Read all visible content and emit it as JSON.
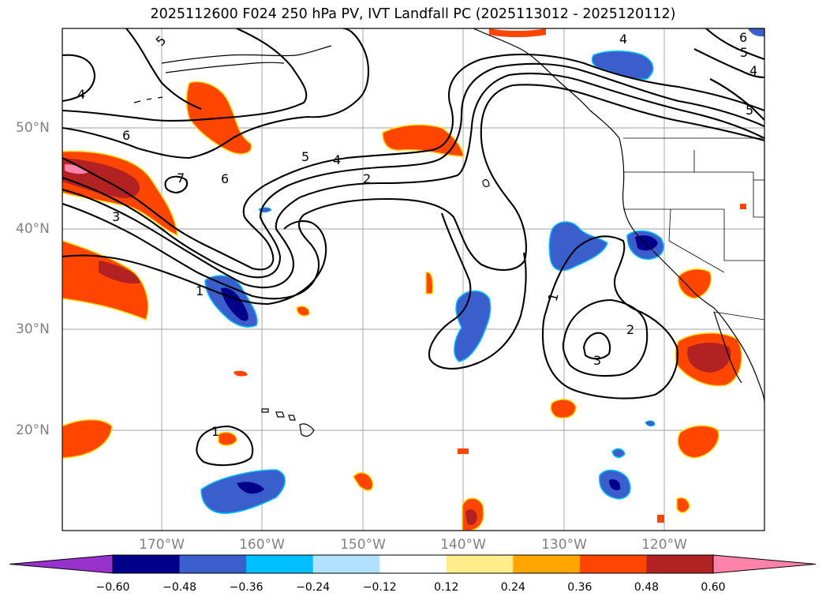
{
  "title": "2025112600 F024 250 hPa PV, IVT Landfall PC (2025113012 - 2025120112)",
  "lat_labels": [
    "50°N",
    "40°N",
    "30°N",
    "20°N"
  ],
  "lon_labels": [
    "170°W",
    "160°W",
    "150°W",
    "140°W",
    "130°W",
    "120°W"
  ],
  "colorbar": {
    "colors": [
      "#9932cc",
      "#00008b",
      "#3a5fcd",
      "#00bfff",
      "#b0e2ff",
      "#ffffff",
      "#ffec8b",
      "#ffa500",
      "#ff4500",
      "#b22222",
      "#ff82ab"
    ],
    "labels": [
      "−0.60",
      "−0.48",
      "−0.36",
      "−0.24",
      "−0.12",
      "0.12",
      "0.24",
      "0.36",
      "0.48",
      "0.60"
    ]
  },
  "contour_labels": [
    "5",
    "4",
    "6",
    "7",
    "6",
    "3",
    "5",
    "4",
    "2",
    "1",
    "1",
    "1",
    "2",
    "3",
    "4",
    "5",
    "4",
    "6",
    "5"
  ]
}
